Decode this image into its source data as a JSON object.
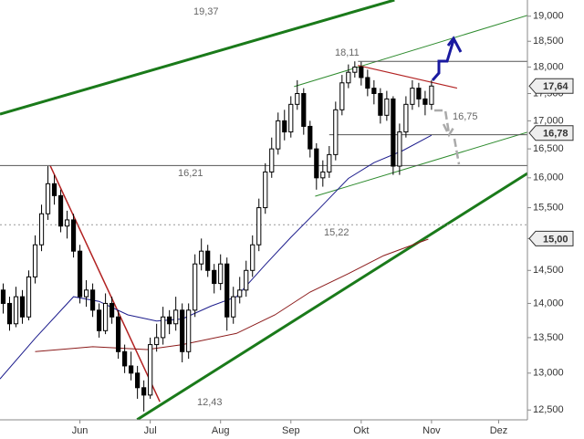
{
  "chart_data": {
    "type": "candlestick",
    "x": [
      1,
      3,
      5,
      7,
      9,
      11,
      13,
      15,
      17,
      19,
      21,
      23,
      25,
      27,
      29,
      31,
      33,
      35,
      37,
      39,
      41,
      43,
      45,
      47,
      49,
      51,
      53,
      55,
      57,
      59,
      61,
      63,
      65,
      67,
      69,
      71,
      73,
      75,
      77,
      79,
      81,
      83,
      85,
      87,
      89,
      91,
      93,
      95,
      97,
      99,
      101,
      103,
      105,
      107,
      109,
      111,
      113,
      115,
      117,
      119,
      121,
      123,
      125,
      127,
      129,
      131,
      133,
      135
    ],
    "open": [
      14200,
      14000,
      13700,
      14100,
      13800,
      14400,
      14900,
      15400,
      15900,
      15700,
      15200,
      15300,
      14800,
      14100,
      14200,
      13900,
      13600,
      14000,
      13800,
      13300,
      13100,
      13000,
      12800,
      12700,
      13400,
      13500,
      13800,
      13700,
      13900,
      13300,
      13900,
      14600,
      14800,
      14500,
      14300,
      14600,
      13800,
      14100,
      14200,
      14500,
      14900,
      15500,
      16100,
      16500,
      17000,
      16800,
      17300,
      17500,
      16900,
      16500,
      16000,
      16100,
      16400,
      17200,
      17700,
      17900,
      18000,
      17800,
      17600,
      17500,
      17100,
      17400,
      16200,
      16800,
      17300,
      17600,
      17400,
      17300
    ],
    "high": [
      14300,
      14100,
      14250,
      14200,
      14500,
      15050,
      15550,
      16200,
      16050,
      15800,
      15450,
      15400,
      14900,
      14350,
      14300,
      14000,
      14150,
      14100,
      13900,
      13400,
      13300,
      13100,
      12900,
      13500,
      13700,
      13950,
      13900,
      14100,
      14000,
      14000,
      14750,
      15000,
      14900,
      14600,
      14750,
      14700,
      14250,
      14400,
      14650,
      15050,
      15650,
      16250,
      16700,
      17150,
      17200,
      17450,
      17750,
      17600,
      17000,
      16600,
      16300,
      16550,
      17350,
      17850,
      18050,
      18110,
      18100,
      17950,
      17750,
      17600,
      17550,
      17450,
      16950,
      17450,
      17750,
      17700,
      17550,
      17750
    ],
    "low": [
      13850,
      13600,
      13650,
      13700,
      13750,
      14300,
      14800,
      15300,
      15550,
      15100,
      15000,
      14700,
      14000,
      13950,
      13800,
      13500,
      13550,
      13700,
      13200,
      13000,
      12900,
      12650,
      12480,
      12650,
      13300,
      13400,
      13550,
      13600,
      13150,
      13200,
      13800,
      14500,
      14400,
      14150,
      14200,
      13600,
      13700,
      14000,
      14100,
      14400,
      14800,
      15400,
      16000,
      16400,
      16650,
      16700,
      17200,
      16750,
      16350,
      15800,
      15850,
      16000,
      16300,
      17100,
      17600,
      17800,
      17650,
      17450,
      17300,
      16950,
      17000,
      16050,
      16050,
      16700,
      17200,
      17250,
      17100,
      17200
    ],
    "close": [
      14000,
      13700,
      14100,
      13800,
      14400,
      14900,
      15400,
      15900,
      15700,
      15200,
      15300,
      14800,
      14100,
      14200,
      13900,
      13600,
      14000,
      13800,
      13300,
      13100,
      13000,
      12800,
      12700,
      13400,
      13500,
      13800,
      13700,
      13900,
      13300,
      13900,
      14600,
      14800,
      14500,
      14300,
      14600,
      13800,
      14100,
      14200,
      14500,
      14900,
      15500,
      16100,
      16500,
      17000,
      16800,
      17300,
      17500,
      16900,
      16500,
      16000,
      16100,
      16400,
      17200,
      17700,
      17900,
      18000,
      17800,
      17600,
      17500,
      17100,
      17400,
      16200,
      16800,
      17300,
      17600,
      17400,
      17300,
      17640
    ],
    "up_color": "#ffffff",
    "down_color": "#000000",
    "log_scale": true,
    "xlim": [
      0,
      165
    ],
    "ylim": [
      12370,
      19330
    ],
    "yticks": [
      {
        "value": 12500,
        "label": "12,500"
      },
      {
        "value": 13000,
        "label": "13,000"
      },
      {
        "value": 13500,
        "label": "13,500"
      },
      {
        "value": 14000,
        "label": "14,000"
      },
      {
        "value": 14500,
        "label": "14,500"
      },
      {
        "value": 15000,
        "label": "15,000"
      },
      {
        "value": 15500,
        "label": "15,500"
      },
      {
        "value": 16000,
        "label": "16,000"
      },
      {
        "value": 16500,
        "label": "16,500"
      },
      {
        "value": 17000,
        "label": "17,000"
      },
      {
        "value": 17500,
        "label": "17,500"
      },
      {
        "value": 18000,
        "label": "18,000"
      },
      {
        "value": 18500,
        "label": "18,500"
      },
      {
        "value": 19000,
        "label": "19,000"
      }
    ],
    "xticks": [
      {
        "value": 25,
        "label": "Jun"
      },
      {
        "value": 47,
        "label": "Jul"
      },
      {
        "value": 69,
        "label": "Aug"
      },
      {
        "value": 91,
        "label": "Sep"
      },
      {
        "value": 113,
        "label": "Okt"
      },
      {
        "value": 135,
        "label": "Nov"
      },
      {
        "value": 156,
        "label": "Dez"
      }
    ],
    "overlays": [
      {
        "color": "#1c1c8c",
        "x": [
          0,
          11,
          23,
          31,
          40,
          49,
          57,
          66,
          74,
          83,
          91,
          100,
          109,
          117,
          126,
          135
        ],
        "values": [
          12920,
          13490,
          14100,
          14030,
          13830,
          13740,
          13770,
          13960,
          14100,
          14590,
          15020,
          15490,
          15990,
          16260,
          16470,
          16740
        ]
      },
      {
        "color": "#8b1a1a",
        "x": [
          11,
          29,
          46,
          57,
          74,
          86,
          97,
          109,
          120,
          134
        ],
        "values": [
          13300,
          13370,
          13330,
          13400,
          13560,
          13830,
          14170,
          14450,
          14730,
          14990
        ]
      }
    ],
    "trendlines": [
      {
        "color": "#1a7a1a",
        "width": 3,
        "x": [
          0,
          123.4
        ],
        "values": [
          17120,
          19330
        ]
      },
      {
        "color": "#1a7a1a",
        "width": 3,
        "x": [
          42.9,
          165
        ],
        "values": [
          12372,
          16075
        ]
      },
      {
        "color": "#2e8b2e",
        "width": 1,
        "x": [
          92,
          165
        ],
        "values": [
          17630,
          19018
        ]
      },
      {
        "color": "#2e8b2e",
        "width": 1,
        "x": [
          98.6,
          165
        ],
        "values": [
          15690,
          16795
        ]
      },
      {
        "color": "#b22222",
        "width": 1.5,
        "x": [
          15.7,
          50
        ],
        "values": [
          16210,
          12610
        ]
      },
      {
        "color": "#b22222",
        "width": 1.2,
        "x": [
          112,
          143
        ],
        "values": [
          18030,
          17600
        ]
      },
      {
        "color": "#555555",
        "width": 1,
        "x": [
          112,
          165
        ],
        "values": [
          18110,
          18110
        ]
      },
      {
        "color": "#555555",
        "width": 1,
        "x": [
          103,
          165
        ],
        "values": [
          16750,
          16750
        ]
      },
      {
        "color": "#555555",
        "width": 1,
        "x": [
          0,
          165
        ],
        "values": [
          16210,
          16210
        ]
      },
      {
        "color": "#999999",
        "width": 1,
        "style": "dotted",
        "x": [
          0,
          165
        ],
        "values": [
          15220,
          15220
        ]
      }
    ],
    "annotations": [
      "19,37",
      "18,11",
      "16,21",
      "16,75",
      "15,22",
      "12,43"
    ],
    "price_tags": [
      {
        "label": "17,64",
        "value": 17640
      },
      {
        "label": "16,78",
        "value": 16780
      },
      {
        "label": "15,00",
        "value": 15000
      }
    ]
  }
}
